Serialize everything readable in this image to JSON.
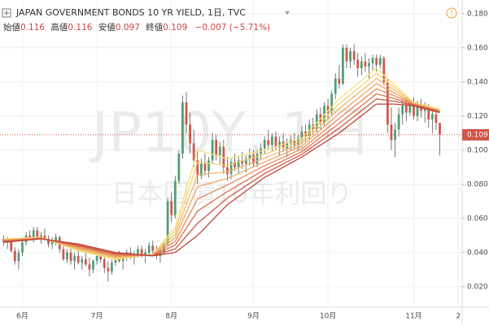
{
  "header": {
    "title": "JAPAN GOVERNMENT BONDS 10 YR YIELD, 1日, TVC",
    "open_label": "始値",
    "high_label": "高値",
    "low_label": "安値",
    "close_label": "終値",
    "change": "−0.007 (−5.71%)"
  },
  "watermark": {
    "symbol": "JP10Y, 1日",
    "name": "日本国債10年利回り"
  },
  "chart_data": {
    "type": "candlestick",
    "up_color": "#4f9e74",
    "down_color": "#d0564a",
    "xlim": [
      -1,
      123
    ],
    "ylim": [
      0.008,
      0.188
    ],
    "yticks": [
      {
        "value": 0.02,
        "label": "0.020"
      },
      {
        "value": 0.04,
        "label": "0.040"
      },
      {
        "value": 0.06,
        "label": "0.060"
      },
      {
        "value": 0.08,
        "label": "0.080"
      },
      {
        "value": 0.1,
        "label": "0.100"
      },
      {
        "value": 0.12,
        "label": "0.120"
      },
      {
        "value": 0.14,
        "label": "0.140"
      },
      {
        "value": 0.16,
        "label": "0.160"
      },
      {
        "value": 0.18,
        "label": "0.180"
      }
    ],
    "xticks": [
      {
        "value": 5,
        "label": "6月"
      },
      {
        "value": 25,
        "label": "7月"
      },
      {
        "value": 45,
        "label": "8月"
      },
      {
        "value": 67,
        "label": "9月"
      },
      {
        "value": 87,
        "label": "10月"
      },
      {
        "value": 110,
        "label": "11月"
      },
      {
        "value": 122,
        "label": "2"
      }
    ],
    "grid": true,
    "ohlc": [
      [
        0.048,
        0.05,
        0.044,
        0.046
      ],
      [
        0.046,
        0.049,
        0.042,
        0.047
      ],
      [
        0.047,
        0.048,
        0.04,
        0.041
      ],
      [
        0.041,
        0.043,
        0.033,
        0.035
      ],
      [
        0.035,
        0.042,
        0.03,
        0.04
      ],
      [
        0.04,
        0.048,
        0.038,
        0.046
      ],
      [
        0.046,
        0.052,
        0.044,
        0.05
      ],
      [
        0.05,
        0.053,
        0.047,
        0.048
      ],
      [
        0.048,
        0.055,
        0.046,
        0.053
      ],
      [
        0.053,
        0.055,
        0.048,
        0.049
      ],
      [
        0.049,
        0.052,
        0.045,
        0.05
      ],
      [
        0.05,
        0.054,
        0.047,
        0.048
      ],
      [
        0.048,
        0.05,
        0.043,
        0.045
      ],
      [
        0.045,
        0.049,
        0.042,
        0.047
      ],
      [
        0.047,
        0.051,
        0.044,
        0.049
      ],
      [
        0.049,
        0.05,
        0.04,
        0.042
      ],
      [
        0.042,
        0.045,
        0.035,
        0.036
      ],
      [
        0.036,
        0.042,
        0.034,
        0.04
      ],
      [
        0.04,
        0.043,
        0.033,
        0.035
      ],
      [
        0.035,
        0.04,
        0.03,
        0.038
      ],
      [
        0.038,
        0.041,
        0.033,
        0.034
      ],
      [
        0.034,
        0.038,
        0.03,
        0.036
      ],
      [
        0.036,
        0.04,
        0.032,
        0.033
      ],
      [
        0.033,
        0.037,
        0.026,
        0.03
      ],
      [
        0.03,
        0.036,
        0.028,
        0.035
      ],
      [
        0.035,
        0.04,
        0.033,
        0.038
      ],
      [
        0.038,
        0.042,
        0.034,
        0.036
      ],
      [
        0.036,
        0.038,
        0.028,
        0.031
      ],
      [
        0.031,
        0.035,
        0.023,
        0.029
      ],
      [
        0.029,
        0.036,
        0.027,
        0.034
      ],
      [
        0.034,
        0.04,
        0.032,
        0.038
      ],
      [
        0.038,
        0.041,
        0.034,
        0.035
      ],
      [
        0.035,
        0.039,
        0.03,
        0.037
      ],
      [
        0.037,
        0.042,
        0.035,
        0.04
      ],
      [
        0.04,
        0.043,
        0.036,
        0.037
      ],
      [
        0.037,
        0.041,
        0.033,
        0.039
      ],
      [
        0.039,
        0.044,
        0.037,
        0.042
      ],
      [
        0.042,
        0.044,
        0.037,
        0.038
      ],
      [
        0.038,
        0.042,
        0.034,
        0.04
      ],
      [
        0.04,
        0.046,
        0.038,
        0.044
      ],
      [
        0.044,
        0.047,
        0.039,
        0.041
      ],
      [
        0.041,
        0.044,
        0.036,
        0.038
      ],
      [
        0.038,
        0.042,
        0.034,
        0.04
      ],
      [
        0.04,
        0.046,
        0.039,
        0.045
      ],
      [
        0.045,
        0.072,
        0.044,
        0.07
      ],
      [
        0.07,
        0.075,
        0.058,
        0.062
      ],
      [
        0.062,
        0.085,
        0.06,
        0.082
      ],
      [
        0.082,
        0.1,
        0.08,
        0.098
      ],
      [
        0.098,
        0.132,
        0.095,
        0.128
      ],
      [
        0.128,
        0.134,
        0.11,
        0.115
      ],
      [
        0.115,
        0.122,
        0.098,
        0.104
      ],
      [
        0.104,
        0.112,
        0.09,
        0.094
      ],
      [
        0.094,
        0.1,
        0.08,
        0.085
      ],
      [
        0.085,
        0.095,
        0.083,
        0.092
      ],
      [
        0.092,
        0.098,
        0.085,
        0.088
      ],
      [
        0.088,
        0.096,
        0.084,
        0.094
      ],
      [
        0.094,
        0.11,
        0.092,
        0.106
      ],
      [
        0.106,
        0.109,
        0.094,
        0.097
      ],
      [
        0.097,
        0.105,
        0.092,
        0.102
      ],
      [
        0.102,
        0.106,
        0.086,
        0.09
      ],
      [
        0.09,
        0.096,
        0.082,
        0.086
      ],
      [
        0.086,
        0.095,
        0.083,
        0.093
      ],
      [
        0.093,
        0.098,
        0.088,
        0.09
      ],
      [
        0.09,
        0.096,
        0.086,
        0.094
      ],
      [
        0.094,
        0.099,
        0.089,
        0.092
      ],
      [
        0.092,
        0.097,
        0.087,
        0.095
      ],
      [
        0.095,
        0.101,
        0.091,
        0.097
      ],
      [
        0.097,
        0.1,
        0.09,
        0.092
      ],
      [
        0.092,
        0.1,
        0.09,
        0.098
      ],
      [
        0.098,
        0.104,
        0.094,
        0.101
      ],
      [
        0.101,
        0.108,
        0.098,
        0.106
      ],
      [
        0.106,
        0.112,
        0.1,
        0.103
      ],
      [
        0.103,
        0.11,
        0.099,
        0.108
      ],
      [
        0.108,
        0.111,
        0.1,
        0.102
      ],
      [
        0.102,
        0.108,
        0.097,
        0.105
      ],
      [
        0.105,
        0.11,
        0.099,
        0.101
      ],
      [
        0.101,
        0.107,
        0.096,
        0.104
      ],
      [
        0.104,
        0.109,
        0.1,
        0.106
      ],
      [
        0.106,
        0.11,
        0.101,
        0.103
      ],
      [
        0.103,
        0.109,
        0.1,
        0.107
      ],
      [
        0.107,
        0.114,
        0.104,
        0.111
      ],
      [
        0.111,
        0.115,
        0.105,
        0.108
      ],
      [
        0.108,
        0.118,
        0.106,
        0.115
      ],
      [
        0.115,
        0.119,
        0.109,
        0.112
      ],
      [
        0.112,
        0.124,
        0.11,
        0.121
      ],
      [
        0.121,
        0.125,
        0.112,
        0.116
      ],
      [
        0.116,
        0.128,
        0.114,
        0.126
      ],
      [
        0.126,
        0.13,
        0.118,
        0.122
      ],
      [
        0.122,
        0.135,
        0.12,
        0.133
      ],
      [
        0.133,
        0.145,
        0.13,
        0.142
      ],
      [
        0.142,
        0.15,
        0.136,
        0.139
      ],
      [
        0.139,
        0.162,
        0.138,
        0.16
      ],
      [
        0.16,
        0.162,
        0.148,
        0.152
      ],
      [
        0.152,
        0.16,
        0.148,
        0.158
      ],
      [
        0.158,
        0.162,
        0.15,
        0.153
      ],
      [
        0.153,
        0.157,
        0.143,
        0.148
      ],
      [
        0.148,
        0.155,
        0.144,
        0.152
      ],
      [
        0.152,
        0.157,
        0.146,
        0.149
      ],
      [
        0.149,
        0.154,
        0.142,
        0.151
      ],
      [
        0.151,
        0.156,
        0.147,
        0.154
      ],
      [
        0.154,
        0.156,
        0.146,
        0.15
      ],
      [
        0.15,
        0.156,
        0.148,
        0.154
      ],
      [
        0.154,
        0.155,
        0.138,
        0.14
      ],
      [
        0.14,
        0.142,
        0.11,
        0.115
      ],
      [
        0.115,
        0.125,
        0.1,
        0.106
      ],
      [
        0.106,
        0.116,
        0.096,
        0.112
      ],
      [
        0.112,
        0.125,
        0.108,
        0.121
      ],
      [
        0.121,
        0.13,
        0.115,
        0.126
      ],
      [
        0.126,
        0.131,
        0.117,
        0.122
      ],
      [
        0.122,
        0.13,
        0.12,
        0.128
      ],
      [
        0.128,
        0.131,
        0.118,
        0.12
      ],
      [
        0.12,
        0.129,
        0.117,
        0.127
      ],
      [
        0.127,
        0.13,
        0.119,
        0.123
      ],
      [
        0.123,
        0.128,
        0.116,
        0.125
      ],
      [
        0.125,
        0.127,
        0.113,
        0.118
      ],
      [
        0.118,
        0.124,
        0.11,
        0.121
      ],
      [
        0.121,
        0.124,
        0.112,
        0.116
      ],
      [
        0.116,
        0.116,
        0.097,
        0.109
      ]
    ],
    "ribbon_x": [
      0,
      10,
      20,
      30,
      40,
      46,
      52,
      60,
      70,
      80,
      90,
      100,
      105,
      110,
      117
    ],
    "ribbon": [
      {
        "color": "#f6e27a",
        "values": [
          0.048,
          0.049,
          0.041,
          0.036,
          0.039,
          0.055,
          0.1,
          0.095,
          0.1,
          0.107,
          0.13,
          0.148,
          0.138,
          0.128,
          0.124
        ]
      },
      {
        "color": "#f4cf72",
        "values": [
          0.0477,
          0.0489,
          0.0416,
          0.0366,
          0.0389,
          0.0529,
          0.0929,
          0.0911,
          0.0977,
          0.1054,
          0.1271,
          0.145,
          0.1364,
          0.1277,
          0.1237
        ]
      },
      {
        "color": "#f1b96a",
        "values": [
          0.0474,
          0.0487,
          0.0421,
          0.0371,
          0.0387,
          0.0507,
          0.0857,
          0.0873,
          0.0954,
          0.1039,
          0.1243,
          0.142,
          0.1349,
          0.1274,
          0.1234
        ]
      },
      {
        "color": "#eda263",
        "values": [
          0.0471,
          0.0486,
          0.0427,
          0.0377,
          0.0386,
          0.0486,
          0.0786,
          0.0834,
          0.0931,
          0.1023,
          0.1214,
          0.139,
          0.1333,
          0.1271,
          0.1231
        ]
      },
      {
        "color": "#e68a5b",
        "values": [
          0.0469,
          0.0484,
          0.0433,
          0.0383,
          0.0384,
          0.0464,
          0.0714,
          0.0796,
          0.0909,
          0.1007,
          0.1186,
          0.136,
          0.1317,
          0.1269,
          0.1229
        ]
      },
      {
        "color": "#dc7252",
        "values": [
          0.0466,
          0.0483,
          0.0439,
          0.0389,
          0.0383,
          0.0443,
          0.0643,
          0.0757,
          0.0886,
          0.0991,
          0.1157,
          0.133,
          0.1301,
          0.1266,
          0.1226
        ]
      },
      {
        "color": "#cf5a48",
        "values": [
          0.0463,
          0.0481,
          0.0444,
          0.0394,
          0.0381,
          0.0421,
          0.0571,
          0.0719,
          0.0863,
          0.0976,
          0.1129,
          0.13,
          0.1286,
          0.1263,
          0.1223
        ]
      },
      {
        "color": "#bd4539",
        "values": [
          0.046,
          0.048,
          0.045,
          0.04,
          0.038,
          0.04,
          0.05,
          0.068,
          0.084,
          0.096,
          0.11,
          0.127,
          0.127,
          0.126,
          0.122
        ]
      }
    ]
  }
}
